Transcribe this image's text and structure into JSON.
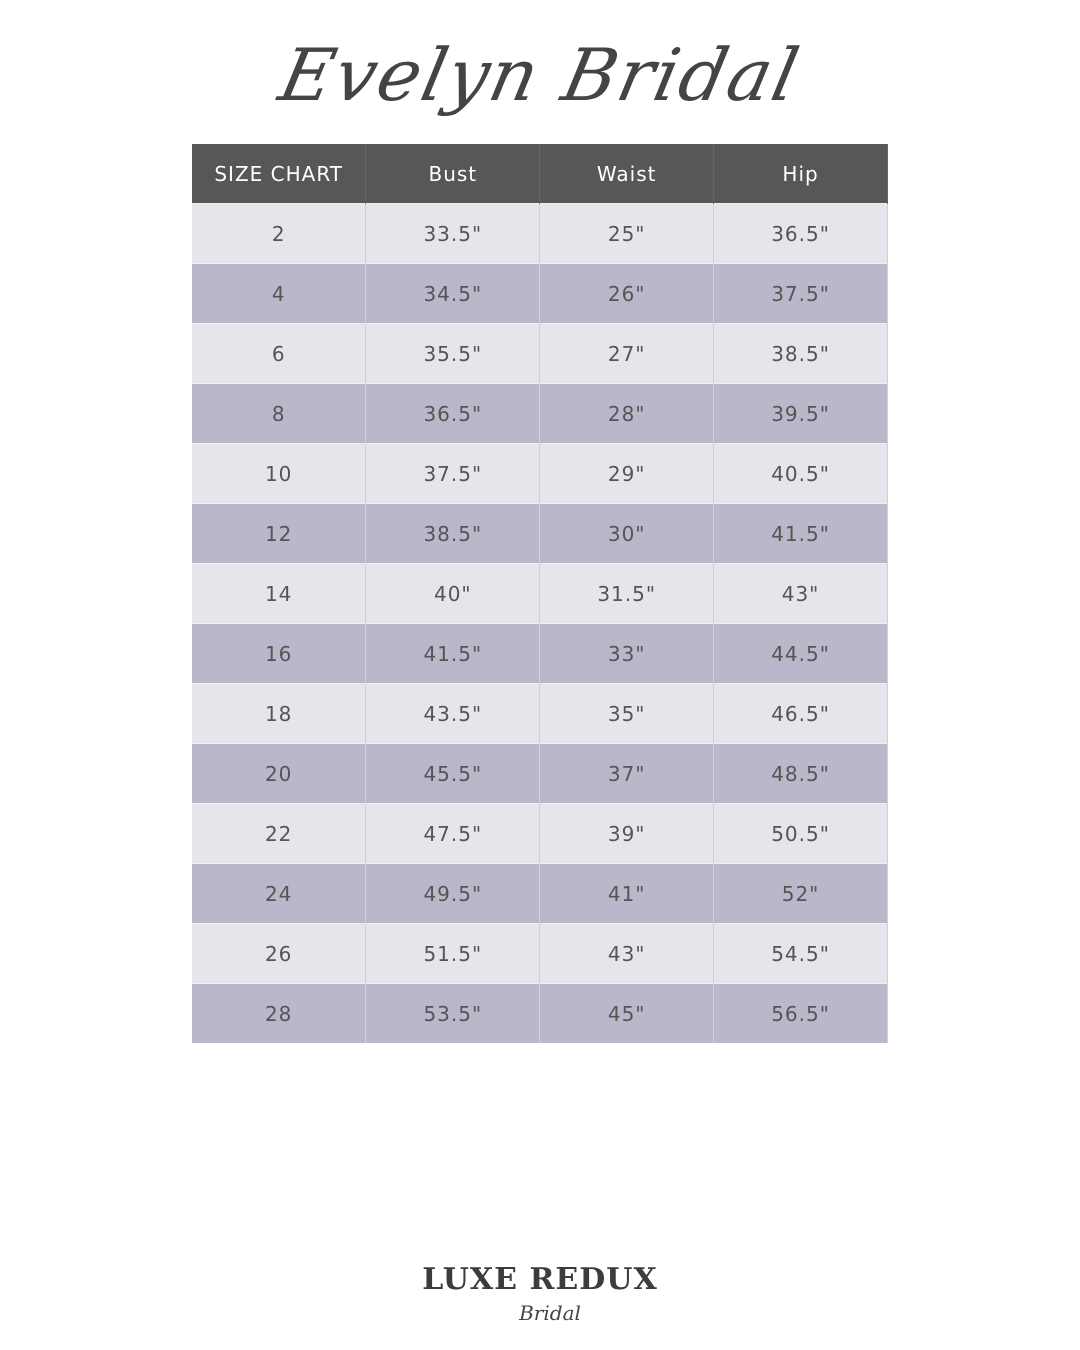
{
  "title": "Evelyn Bridal",
  "headers": [
    "SIZE CHART",
    "Bust",
    "Waist",
    "Hip"
  ],
  "rows": [
    [
      "2",
      "33.5\"",
      "25\"",
      "36.5\""
    ],
    [
      "4",
      "34.5\"",
      "26\"",
      "37.5\""
    ],
    [
      "6",
      "35.5\"",
      "27\"",
      "38.5\""
    ],
    [
      "8",
      "36.5\"",
      "28\"",
      "39.5\""
    ],
    [
      "10",
      "37.5\"",
      "29\"",
      "40.5\""
    ],
    [
      "12",
      "38.5\"",
      "30\"",
      "41.5\""
    ],
    [
      "14",
      "40\"",
      "31.5\"",
      "43\""
    ],
    [
      "16",
      "41.5\"",
      "33\"",
      "44.5\""
    ],
    [
      "18",
      "43.5\"",
      "35\"",
      "46.5\""
    ],
    [
      "20",
      "45.5\"",
      "37\"",
      "48.5\""
    ],
    [
      "22",
      "47.5\"",
      "39\"",
      "50.5\""
    ],
    [
      "24",
      "49.5\"",
      "41\"",
      "52\""
    ],
    [
      "26",
      "51.5\"",
      "43\"",
      "54.5\""
    ],
    [
      "28",
      "53.5\"",
      "45\"",
      "56.5\""
    ]
  ],
  "logo": {
    "main": "LUXE REDUX",
    "sub": "Bridal"
  },
  "colors": {
    "header": "#575757",
    "row_light": "#e6e5eb",
    "row_dark": "#b9b8ca"
  }
}
